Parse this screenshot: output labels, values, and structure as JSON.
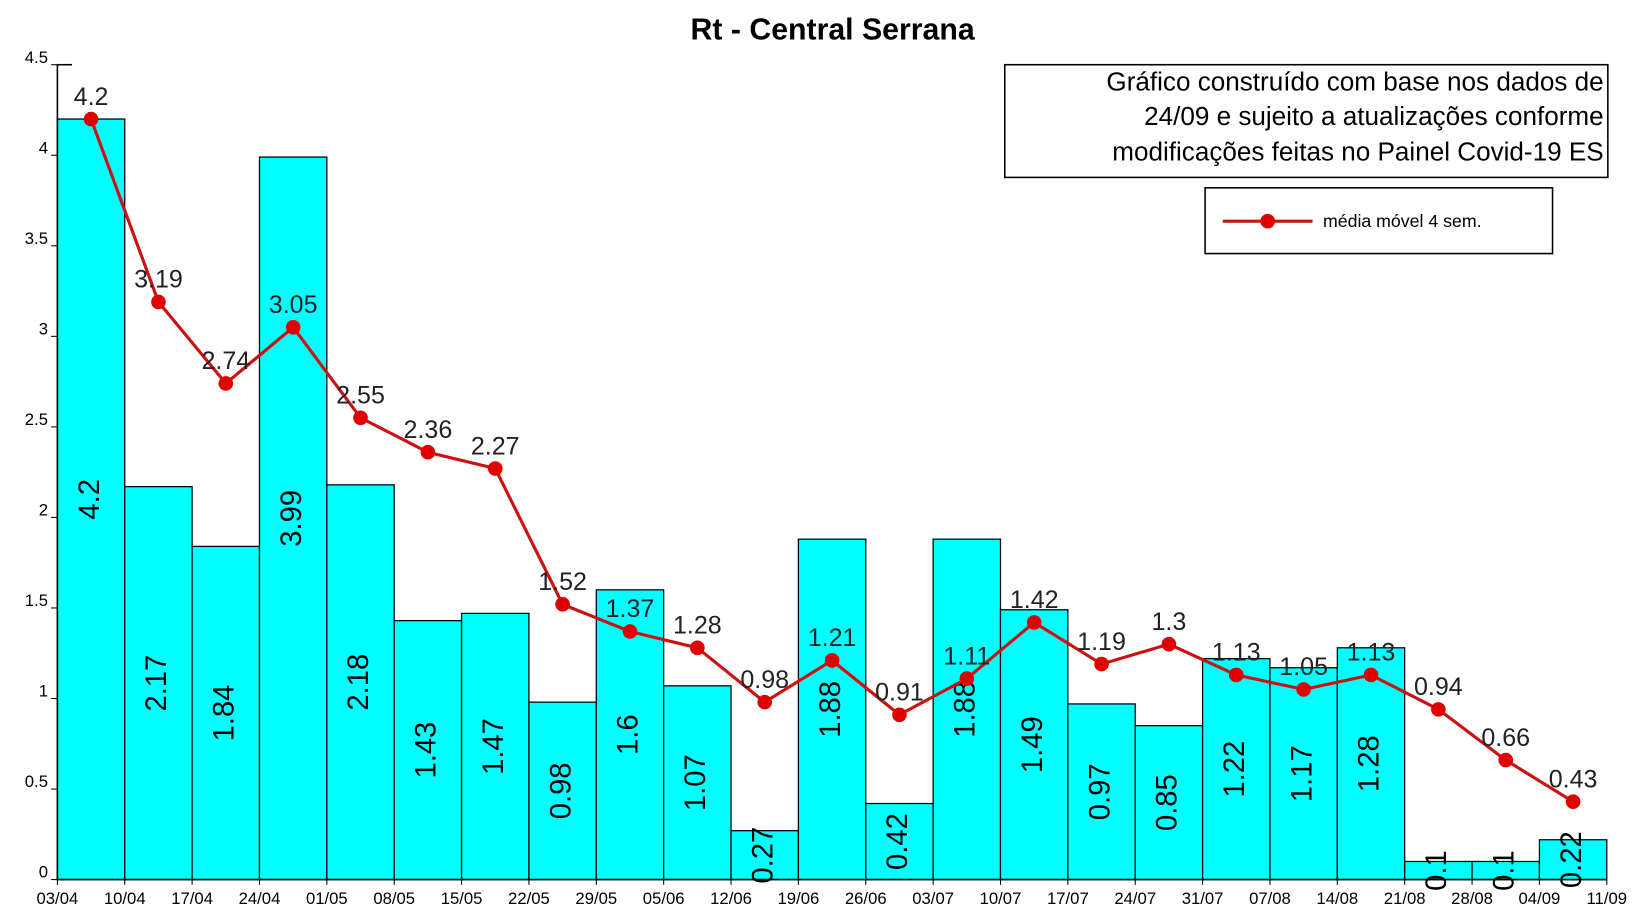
{
  "chart_data": {
    "type": "bar",
    "title": "Rt - Central Serrana",
    "annotation": [
      "Gráfico construído com base nos dados de",
      "24/09 e sujeito a atualizações conforme",
      "modificações feitas no Painel Covid-19 ES"
    ],
    "x_edges": [
      "03/04",
      "10/04",
      "17/04",
      "24/04",
      "01/05",
      "08/05",
      "15/05",
      "22/05",
      "29/05",
      "05/06",
      "12/06",
      "19/06",
      "26/06",
      "03/07",
      "10/07",
      "17/07",
      "24/07",
      "31/07",
      "07/08",
      "14/08",
      "21/08",
      "28/08",
      "04/09",
      "11/09"
    ],
    "series": [
      {
        "type": "bar",
        "color": "#00ffff",
        "values": [
          4.2,
          2.17,
          1.84,
          3.99,
          2.18,
          1.43,
          1.47,
          0.98,
          1.6,
          1.07,
          0.27,
          1.88,
          0.42,
          1.88,
          1.49,
          0.97,
          0.85,
          1.22,
          1.17,
          1.28,
          0.1,
          0.1,
          0.22
        ]
      },
      {
        "type": "line",
        "name": "média móvel 4 sem.",
        "color": "#cc1111",
        "values": [
          4.2,
          3.19,
          2.74,
          3.05,
          2.55,
          2.36,
          2.27,
          1.52,
          1.37,
          1.28,
          0.98,
          1.21,
          0.91,
          1.11,
          1.42,
          1.19,
          1.3,
          1.13,
          1.05,
          1.13,
          0.94,
          0.66,
          0.43
        ]
      }
    ],
    "ylim": [
      0,
      4.5
    ],
    "yticks": [
      0,
      0.5,
      1,
      1.5,
      2,
      2.5,
      3,
      3.5,
      4,
      4.5
    ]
  }
}
